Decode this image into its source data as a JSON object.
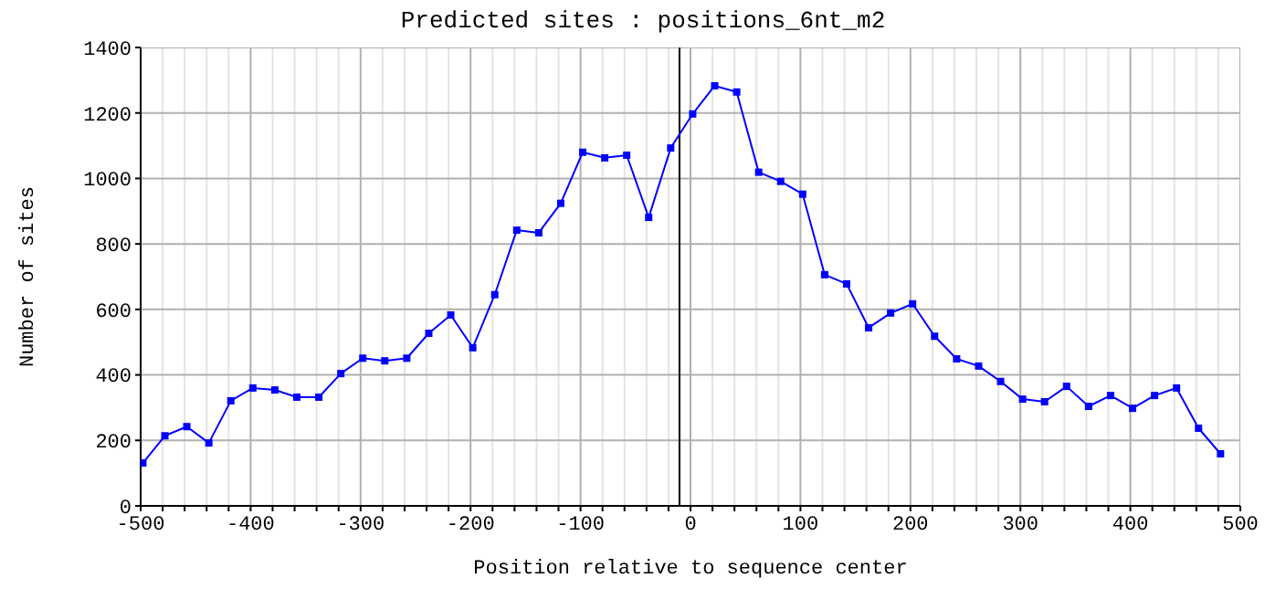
{
  "chart_data": {
    "type": "line",
    "title": "Predicted sites : positions_6nt_m2",
    "xlabel": "Position relative to sequence center",
    "ylabel": "Number of sites",
    "x": [
      -498,
      -478,
      -458,
      -438,
      -418,
      -398,
      -378,
      -358,
      -338,
      -318,
      -298,
      -278,
      -258,
      -238,
      -218,
      -198,
      -178,
      -158,
      -138,
      -118,
      -98,
      -78,
      -58,
      -38,
      -18,
      2,
      22,
      42,
      62,
      82,
      102,
      122,
      142,
      162,
      182,
      202,
      222,
      242,
      262,
      282,
      302,
      322,
      342,
      362,
      382,
      402,
      422,
      442,
      462,
      482
    ],
    "series": [
      {
        "color": "#0000ff",
        "values": [
          131,
          214,
          242,
          192,
          321,
          360,
          354,
          332,
          332,
          404,
          451,
          443,
          451,
          527,
          583,
          483,
          645,
          842,
          834,
          924,
          1080,
          1063,
          1071,
          881,
          1093,
          1197,
          1283,
          1264,
          1019,
          991,
          952,
          706,
          678,
          544,
          589,
          617,
          518,
          449,
          427,
          380,
          326,
          318,
          365,
          304,
          337,
          298,
          337,
          360,
          237,
          159
        ]
      }
    ],
    "xlim": [
      -500,
      500
    ],
    "xticks": [
      -500,
      {
        "value": -480,
        "label": null
      },
      {
        "value": -460,
        "label": null
      },
      {
        "value": -440,
        "label": null
      },
      {
        "value": -420,
        "label": null
      },
      -400,
      {
        "value": -380,
        "label": null
      },
      {
        "value": -360,
        "label": null
      },
      {
        "value": -340,
        "label": null
      },
      {
        "value": -320,
        "label": null
      },
      -300,
      {
        "value": -280,
        "label": null
      },
      {
        "value": -260,
        "label": null
      },
      {
        "value": -240,
        "label": null
      },
      {
        "value": -220,
        "label": null
      },
      -200,
      {
        "value": -180,
        "label": null
      },
      {
        "value": -160,
        "label": null
      },
      {
        "value": -140,
        "label": null
      },
      {
        "value": -120,
        "label": null
      },
      -100,
      {
        "value": -80,
        "label": null
      },
      {
        "value": -60,
        "label": null
      },
      {
        "value": -40,
        "label": null
      },
      {
        "value": -20,
        "label": null
      },
      0,
      {
        "value": 20,
        "label": null
      },
      {
        "value": 40,
        "label": null
      },
      {
        "value": 60,
        "label": null
      },
      {
        "value": 80,
        "label": null
      },
      100,
      {
        "value": 120,
        "label": null
      },
      {
        "value": 140,
        "label": null
      },
      {
        "value": 160,
        "label": null
      },
      {
        "value": 180,
        "label": null
      },
      200,
      {
        "value": 220,
        "label": null
      },
      {
        "value": 240,
        "label": null
      },
      {
        "value": 260,
        "label": null
      },
      {
        "value": 280,
        "label": null
      },
      300,
      {
        "value": 320,
        "label": null
      },
      {
        "value": 340,
        "label": null
      },
      {
        "value": 360,
        "label": null
      },
      {
        "value": 380,
        "label": null
      },
      400,
      {
        "value": 420,
        "label": null
      },
      {
        "value": 440,
        "label": null
      },
      {
        "value": 460,
        "label": null
      },
      {
        "value": 480,
        "label": null
      },
      500
    ],
    "ylim": [
      0,
      1400
    ],
    "yticks": [
      0,
      200,
      400,
      600,
      800,
      1000,
      1200,
      1400
    ],
    "grid": true,
    "marker": "square",
    "line_style": "solid",
    "ref_lines": [
      {
        "axis": "x",
        "value": -10,
        "color": "#000000"
      }
    ]
  }
}
